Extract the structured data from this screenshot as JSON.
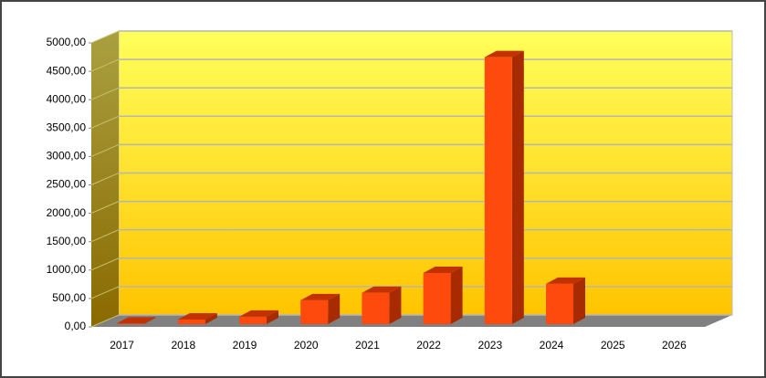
{
  "chart_data": {
    "type": "bar3d",
    "categories": [
      "2017",
      "2018",
      "2019",
      "2020",
      "2021",
      "2022",
      "2023",
      "2024",
      "2025",
      "2026"
    ],
    "values": [
      10,
      80,
      130,
      420,
      550,
      900,
      4700,
      710,
      0,
      0
    ],
    "color": "#ff4a0e",
    "ylim": [
      0,
      5000
    ],
    "yticks": [
      {
        "value": 0,
        "label": "0,00"
      },
      {
        "value": 500,
        "label": "500,00"
      },
      {
        "value": 1000,
        "label": "1000,00"
      },
      {
        "value": 1500,
        "label": "1500,00"
      },
      {
        "value": 2000,
        "label": "2000,00"
      },
      {
        "value": 2500,
        "label": "2500,00"
      },
      {
        "value": 3000,
        "label": "3000,00"
      },
      {
        "value": 3500,
        "label": "3500,00"
      },
      {
        "value": 4000,
        "label": "4000,00"
      },
      {
        "value": 4500,
        "label": "4500,00"
      },
      {
        "value": 5000,
        "label": "5000,00"
      }
    ],
    "grid": true
  }
}
